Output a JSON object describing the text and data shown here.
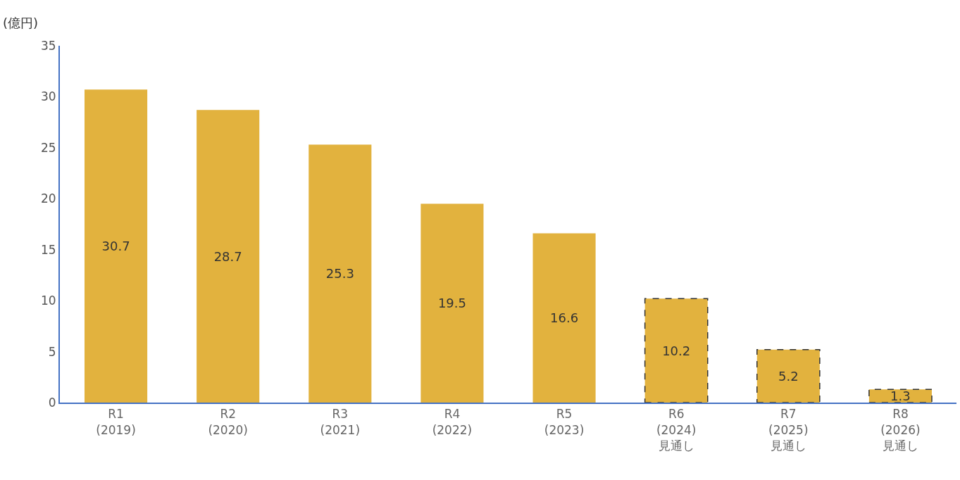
{
  "chart_data": {
    "type": "bar",
    "ylabel": "(億円)",
    "categories": [
      "R1\n(2019)",
      "R2\n(2020)",
      "R3\n(2021)",
      "R4\n(2022)",
      "R5\n(2023)",
      "R6\n(2024)\n見通し",
      "R7\n(2025)\n見通し",
      "R8\n(2026)\n見通し"
    ],
    "series": [
      {
        "color": "#e2b23e",
        "values": [
          30.7,
          28.7,
          25.3,
          19.5,
          16.6,
          null,
          null,
          null
        ],
        "line_style": "solid"
      },
      {
        "color": "#e2b23e",
        "values": [
          null,
          null,
          null,
          null,
          null,
          10.2,
          5.2,
          1.3
        ],
        "line_style": "dashed"
      }
    ],
    "ylim": [
      0,
      35
    ],
    "yticks": [
      0,
      5,
      10,
      15,
      20,
      25,
      30,
      35
    ],
    "data_labels": true
  }
}
